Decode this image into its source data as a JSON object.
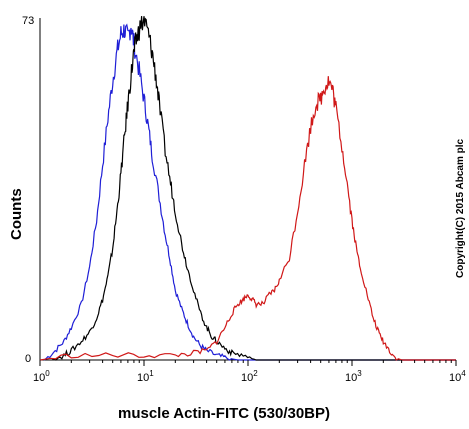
{
  "chart_data": {
    "type": "line",
    "xlabel": "muscle Actin-FITC (530/30BP)",
    "ylabel": "Counts",
    "xscale": "log",
    "xlim": [
      1,
      10000
    ],
    "ylim": [
      0,
      73
    ],
    "yticks": [
      "0",
      "73"
    ],
    "xticks": [
      {
        "base": "10",
        "exp": "0"
      },
      {
        "base": "10",
        "exp": "1"
      },
      {
        "base": "10",
        "exp": "2"
      },
      {
        "base": "10",
        "exp": "3"
      },
      {
        "base": "10",
        "exp": "4"
      }
    ],
    "annotation": "Copyright(C) 2015 Abcam plc",
    "grid": false,
    "series": [
      {
        "color": "#1f1fd6",
        "points": [
          [
            1.1,
            0
          ],
          [
            1.4,
            2
          ],
          [
            1.7,
            4
          ],
          [
            2.0,
            7
          ],
          [
            2.5,
            12
          ],
          [
            3.0,
            20
          ],
          [
            3.5,
            30
          ],
          [
            4.0,
            42
          ],
          [
            4.5,
            52
          ],
          [
            5.0,
            60
          ],
          [
            5.5,
            66
          ],
          [
            6.0,
            70
          ],
          [
            6.5,
            71
          ],
          [
            7.0,
            69
          ],
          [
            7.5,
            72
          ],
          [
            8.0,
            68
          ],
          [
            9.0,
            62
          ],
          [
            10,
            56
          ],
          [
            11,
            50
          ],
          [
            12,
            44
          ],
          [
            14,
            35
          ],
          [
            16,
            27
          ],
          [
            18,
            21
          ],
          [
            20,
            15
          ],
          [
            23,
            11
          ],
          [
            26,
            8
          ],
          [
            30,
            5
          ],
          [
            35,
            3
          ],
          [
            40,
            2
          ],
          [
            50,
            1
          ],
          [
            60,
            0.5
          ],
          [
            80,
            0
          ]
        ]
      },
      {
        "color": "#000000",
        "points": [
          [
            1.3,
            0
          ],
          [
            1.7,
            1
          ],
          [
            2.0,
            2
          ],
          [
            2.5,
            4
          ],
          [
            3.0,
            6
          ],
          [
            3.5,
            9
          ],
          [
            4.0,
            13
          ],
          [
            4.5,
            18
          ],
          [
            5.0,
            24
          ],
          [
            5.5,
            32
          ],
          [
            6.0,
            40
          ],
          [
            6.5,
            48
          ],
          [
            7.0,
            55
          ],
          [
            7.5,
            61
          ],
          [
            8.0,
            66
          ],
          [
            8.5,
            69
          ],
          [
            9.0,
            71
          ],
          [
            10,
            73
          ],
          [
            11,
            70
          ],
          [
            12,
            66
          ],
          [
            13,
            61
          ],
          [
            14,
            55
          ],
          [
            16,
            45
          ],
          [
            18,
            38
          ],
          [
            20,
            32
          ],
          [
            23,
            25
          ],
          [
            26,
            20
          ],
          [
            30,
            15
          ],
          [
            35,
            10
          ],
          [
            40,
            7
          ],
          [
            45,
            5
          ],
          [
            50,
            4
          ],
          [
            60,
            2.5
          ],
          [
            70,
            1.5
          ],
          [
            90,
            1
          ],
          [
            120,
            0
          ]
        ]
      },
      {
        "color": "#d01818",
        "points": [
          [
            1,
            0
          ],
          [
            2,
            1
          ],
          [
            5,
            1
          ],
          [
            10,
            1
          ],
          [
            20,
            1
          ],
          [
            30,
            1.5
          ],
          [
            40,
            2
          ],
          [
            50,
            4
          ],
          [
            60,
            7
          ],
          [
            70,
            10
          ],
          [
            80,
            12
          ],
          [
            90,
            13
          ],
          [
            100,
            14
          ],
          [
            110,
            13
          ],
          [
            120,
            12
          ],
          [
            140,
            12
          ],
          [
            160,
            14
          ],
          [
            180,
            15
          ],
          [
            200,
            17
          ],
          [
            250,
            22
          ],
          [
            300,
            32
          ],
          [
            350,
            42
          ],
          [
            400,
            50
          ],
          [
            450,
            55
          ],
          [
            500,
            56
          ],
          [
            550,
            59
          ],
          [
            600,
            60
          ],
          [
            650,
            58
          ],
          [
            700,
            54
          ],
          [
            800,
            46
          ],
          [
            900,
            38
          ],
          [
            1000,
            30
          ],
          [
            1100,
            24
          ],
          [
            1200,
            20
          ],
          [
            1400,
            14
          ],
          [
            1600,
            9
          ],
          [
            1800,
            6
          ],
          [
            2000,
            4
          ],
          [
            2300,
            2
          ],
          [
            2600,
            0.5
          ],
          [
            3000,
            0
          ]
        ]
      }
    ]
  }
}
